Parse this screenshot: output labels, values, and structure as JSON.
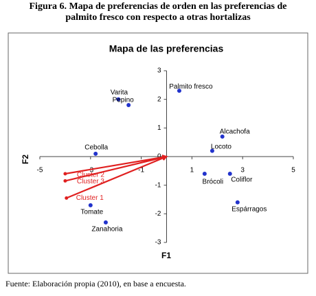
{
  "caption": {
    "lines": [
      "Figura 6.  Mapa de preferencias de orden en las preferencias de",
      "palmito fresco con respecto a otras hortalizas"
    ]
  },
  "source": "Fuente: Elaboración propia (2010), en base a encuesta.",
  "chart_data": {
    "type": "scatter",
    "title": "Mapa de las preferencias",
    "x_label": "F1",
    "y_label": "F2",
    "xlim": [
      -5,
      5
    ],
    "ylim": [
      -3,
      3
    ],
    "xticks": [
      -5,
      -3,
      -1,
      1,
      3,
      5
    ],
    "yticks": [
      -3,
      -2,
      -1,
      0,
      1,
      2,
      3
    ],
    "points": {
      "color": "#2233cc",
      "labels": [
        "Varita",
        "Pepino",
        "Palmito fresco",
        "Alcachofa",
        "Locoto",
        "Cebolla",
        "Brócoli",
        "Coliflor",
        "Espárragos",
        "Tomate",
        "Zanahoria"
      ],
      "x": [
        -1.9,
        -1.5,
        0.5,
        2.2,
        1.8,
        -2.8,
        1.5,
        2.5,
        2.8,
        -3.0,
        -2.4
      ],
      "y": [
        2.0,
        1.8,
        2.3,
        0.7,
        0.2,
        0.1,
        -0.6,
        -0.6,
        -1.6,
        -1.7,
        -2.3
      ]
    },
    "vectors": {
      "color": "#e02020",
      "labels": [
        "Cluster 2",
        "Cluster 3",
        "Cluster 1"
      ],
      "x": [
        -4.0,
        -4.0,
        -3.95
      ],
      "y": [
        -0.6,
        -0.85,
        -1.45
      ]
    }
  }
}
